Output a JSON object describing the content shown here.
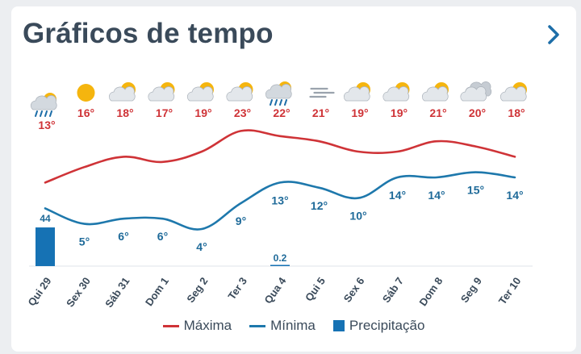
{
  "header": {
    "title": "Gráficos de tempo",
    "next_icon": "chevron-right-icon"
  },
  "colors": {
    "max": "#cf3337",
    "min": "#1e78ac",
    "precip": "#1672b4",
    "label_min": "#1e6a99",
    "icon_sun": "#f5b50e",
    "icon_cloud": "#b9c0c8"
  },
  "days": [
    {
      "label": "Qui 29",
      "icon": "rain-cloud-sun-icon"
    },
    {
      "label": "Sex 30",
      "icon": "sun-icon"
    },
    {
      "label": "Sáb 31",
      "icon": "partly-cloudy-icon"
    },
    {
      "label": "Dom 1",
      "icon": "partly-cloudy-icon"
    },
    {
      "label": "Seg 2",
      "icon": "partly-cloudy-icon"
    },
    {
      "label": "Ter 3",
      "icon": "partly-cloudy-icon"
    },
    {
      "label": "Qua 4",
      "icon": "rain-cloud-sun-icon"
    },
    {
      "label": "Qui 5",
      "icon": "fog-icon"
    },
    {
      "label": "Sex 6",
      "icon": "partly-cloudy-icon"
    },
    {
      "label": "Sáb 7",
      "icon": "partly-cloudy-icon"
    },
    {
      "label": "Dom 8",
      "icon": "partly-cloudy-icon"
    },
    {
      "label": "Seg 9",
      "icon": "cloudy-icon"
    },
    {
      "label": "Ter 10",
      "icon": "partly-cloudy-icon"
    }
  ],
  "chart_data": {
    "type": "line",
    "categories": [
      "Qui 29",
      "Sex 30",
      "Sáb 31",
      "Dom 1",
      "Seg 2",
      "Ter 3",
      "Qua 4",
      "Qui 5",
      "Sex 6",
      "Sáb 7",
      "Dom 8",
      "Seg 9",
      "Ter 10"
    ],
    "series": [
      {
        "name": "Máxima",
        "unit": "°",
        "values": [
          13,
          16,
          18,
          17,
          19,
          23,
          22,
          21,
          19,
          19,
          21,
          20,
          18
        ],
        "labels": [
          "13°",
          "16°",
          "18°",
          "17°",
          "19°",
          "23°",
          "22°",
          "21°",
          "19°",
          "19°",
          "21°",
          "20°",
          "18°"
        ]
      },
      {
        "name": "Mínima",
        "unit": "°",
        "values": [
          8,
          5,
          6,
          6,
          4,
          9,
          13,
          12,
          10,
          14,
          14,
          15,
          14
        ],
        "labels": [
          "",
          "5°",
          "6°",
          "6°",
          "4°",
          "9°",
          "13°",
          "12°",
          "10°",
          "14°",
          "14°",
          "15°",
          "14°"
        ]
      },
      {
        "name": "Precipitação",
        "type": "bar",
        "values": [
          44,
          0,
          0,
          0,
          0,
          0,
          0.2,
          0,
          0,
          0,
          0,
          0,
          0
        ],
        "labels": [
          "44",
          "",
          "",
          "",
          "",
          "",
          "0.2",
          "",
          "",
          "",
          "",
          "",
          ""
        ]
      }
    ],
    "legend": {
      "position": "bottom",
      "items": [
        "Máxima",
        "Mínima",
        "Precipitação"
      ]
    },
    "grid": false
  }
}
